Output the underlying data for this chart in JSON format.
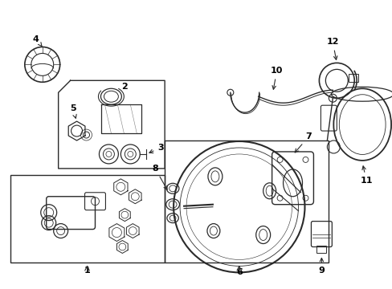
{
  "bg_color": "#ffffff",
  "line_color": "#2a2a2a",
  "text_color": "#000000",
  "fig_width": 4.89,
  "fig_height": 3.6,
  "dpi": 100
}
